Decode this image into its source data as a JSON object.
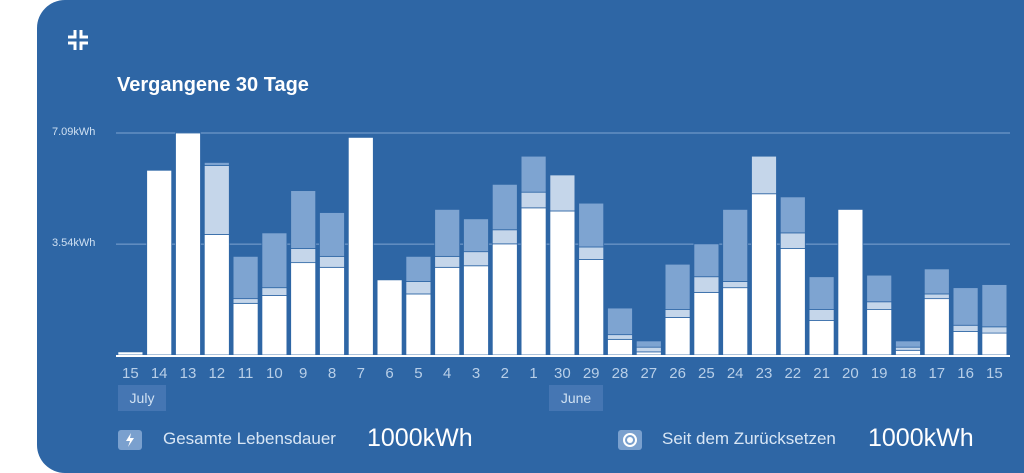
{
  "header": {
    "title": "Vergangene 30 Tage",
    "collapse_icon": "collapse-icon"
  },
  "colors": {
    "background": "#2e66a5",
    "bar_primary": "#ffffff",
    "bar_secondary": "#c5d6ea",
    "bar_tertiary": "#7ea4d1",
    "gridline": "#7ea4d1"
  },
  "chart_data": {
    "type": "bar",
    "stacked": true,
    "ylim": [
      0,
      7.09
    ],
    "yticks": [
      "7.09kWh",
      "3.54kWh"
    ],
    "ytick_values": [
      7.09,
      3.54
    ],
    "categories": [
      "15",
      "14",
      "13",
      "12",
      "11",
      "10",
      "9",
      "8",
      "7",
      "6",
      "5",
      "4",
      "3",
      "2",
      "1",
      "30",
      "29",
      "28",
      "27",
      "26",
      "25",
      "24",
      "23",
      "22",
      "21",
      "20",
      "19",
      "18",
      "17",
      "16",
      "15"
    ],
    "series": [
      {
        "values": [
          0.1,
          5.9,
          7.09,
          3.85,
          1.65,
          1.9,
          2.95,
          2.8,
          6.95,
          2.4,
          1.95,
          2.8,
          2.85,
          3.55,
          4.7,
          4.6,
          3.05,
          0.5,
          0.1,
          1.2,
          2.0,
          2.15,
          5.15,
          3.4,
          1.1,
          4.65,
          1.45,
          0.15,
          1.8,
          0.75,
          0.7
        ]
      },
      {
        "values": [
          0.0,
          0.0,
          0.0,
          2.2,
          0.15,
          0.25,
          0.45,
          0.35,
          0.0,
          0.0,
          0.4,
          0.35,
          0.45,
          0.45,
          0.5,
          1.15,
          0.4,
          0.15,
          0.15,
          0.25,
          0.5,
          0.2,
          1.2,
          0.5,
          0.35,
          0.0,
          0.25,
          0.1,
          0.15,
          0.2,
          0.2
        ]
      },
      {
        "values": [
          0.0,
          0.0,
          0.0,
          0.1,
          1.35,
          1.75,
          1.85,
          1.4,
          0.0,
          0.0,
          0.8,
          1.5,
          1.05,
          1.45,
          1.15,
          0.0,
          1.4,
          0.85,
          0.2,
          1.45,
          1.05,
          2.3,
          0.0,
          1.15,
          1.05,
          0.0,
          0.85,
          0.2,
          0.8,
          1.2,
          1.35
        ]
      }
    ],
    "month_labels": [
      {
        "text": "July",
        "at_index": 0
      },
      {
        "text": "June",
        "at_index": 15
      }
    ]
  },
  "stats": {
    "lifetime": {
      "icon": "bolt-icon",
      "label": "Gesamte Lebensdauer",
      "value": "1000kWh"
    },
    "since_reset": {
      "icon": "reset-target-icon",
      "label": "Seit dem Zurücksetzen",
      "value": "1000kWh"
    }
  }
}
